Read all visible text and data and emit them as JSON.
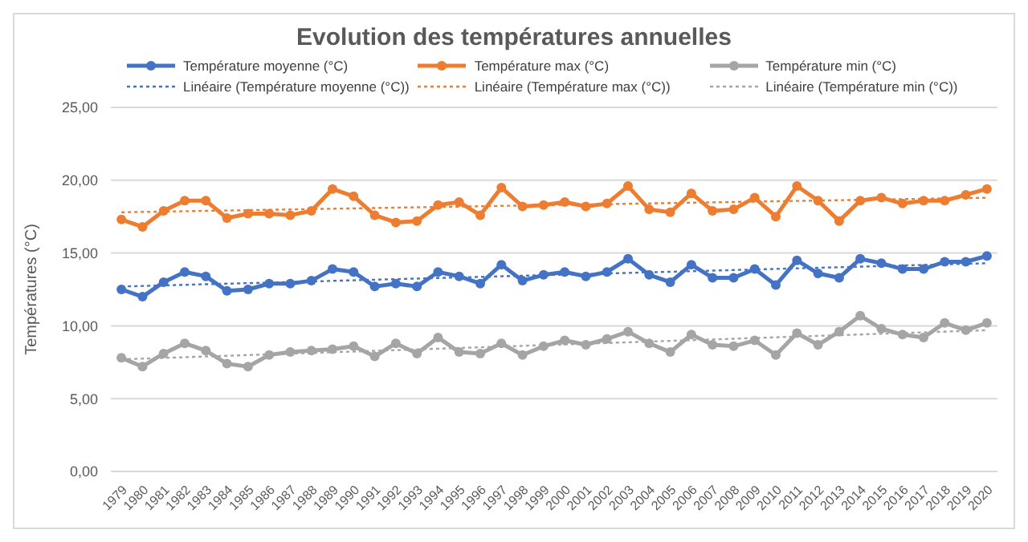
{
  "chart_data": {
    "type": "line",
    "title": "Evolution des températures annuelles",
    "ylabel": "Températures (°C)",
    "x": [
      1979,
      1980,
      1981,
      1982,
      1983,
      1984,
      1985,
      1986,
      1987,
      1988,
      1989,
      1990,
      1991,
      1992,
      1993,
      1994,
      1995,
      1996,
      1997,
      1998,
      1999,
      2000,
      2001,
      2002,
      2003,
      2004,
      2005,
      2006,
      2007,
      2008,
      2009,
      2010,
      2011,
      2012,
      2013,
      2014,
      2015,
      2016,
      2017,
      2018,
      2019,
      2020
    ],
    "xlim": [
      1978.5,
      2020.5
    ],
    "xticks": [
      1979,
      1980,
      1981,
      1982,
      1983,
      1984,
      1985,
      1986,
      1987,
      1988,
      1989,
      1990,
      1991,
      1992,
      1993,
      1994,
      1995,
      1996,
      1997,
      1998,
      1999,
      2000,
      2001,
      2002,
      2003,
      2004,
      2005,
      2006,
      2007,
      2008,
      2009,
      2010,
      2011,
      2012,
      2013,
      2014,
      2015,
      2016,
      2017,
      2018,
      2019,
      2020
    ],
    "ylim": [
      0,
      25
    ],
    "yticks": [
      {
        "value": 0,
        "label": "0,00"
      },
      {
        "value": 5,
        "label": "5,00"
      },
      {
        "value": 10,
        "label": "10,00"
      },
      {
        "value": 15,
        "label": "15,00"
      },
      {
        "value": 20,
        "label": "20,00"
      },
      {
        "value": 25,
        "label": "25,00"
      }
    ],
    "grid": "y",
    "legend": "top",
    "marker": "circle",
    "line_style": "solid",
    "series": [
      {
        "name": "Température moyenne (°C)",
        "color": "#4472c4",
        "values": [
          12.5,
          12.0,
          13.0,
          13.7,
          13.4,
          12.4,
          12.5,
          12.9,
          12.9,
          13.1,
          13.9,
          13.7,
          12.7,
          12.9,
          12.7,
          13.7,
          13.4,
          12.9,
          14.2,
          13.1,
          13.5,
          13.7,
          13.4,
          13.7,
          14.6,
          13.5,
          13.0,
          14.2,
          13.3,
          13.3,
          13.9,
          12.8,
          14.5,
          13.6,
          13.3,
          14.6,
          14.3,
          13.9,
          13.9,
          14.4,
          14.4,
          14.8
        ]
      },
      {
        "name": "Température max (°C)",
        "color": "#ed7d31",
        "values": [
          17.3,
          16.8,
          17.9,
          18.6,
          18.6,
          17.4,
          17.7,
          17.7,
          17.6,
          17.9,
          19.4,
          18.9,
          17.6,
          17.1,
          17.2,
          18.3,
          18.5,
          17.6,
          19.5,
          18.2,
          18.3,
          18.5,
          18.2,
          18.4,
          19.6,
          18.0,
          17.8,
          19.1,
          17.9,
          18.0,
          18.8,
          17.5,
          19.6,
          18.6,
          17.2,
          18.6,
          18.8,
          18.4,
          18.6,
          18.6,
          19.0,
          19.4
        ]
      },
      {
        "name": "Température min (°C)",
        "color": "#a5a5a5",
        "values": [
          7.8,
          7.2,
          8.1,
          8.8,
          8.3,
          7.4,
          7.2,
          8.0,
          8.2,
          8.3,
          8.4,
          8.6,
          7.9,
          8.8,
          8.1,
          9.2,
          8.2,
          8.1,
          8.8,
          8.0,
          8.6,
          9.0,
          8.7,
          9.1,
          9.6,
          8.8,
          8.2,
          9.4,
          8.7,
          8.6,
          9.0,
          8.0,
          9.5,
          8.7,
          9.6,
          10.7,
          9.8,
          9.4,
          9.2,
          10.2,
          9.7,
          10.2
        ]
      },
      {
        "name": "Linéaire (Température moyenne (°C))",
        "color": "#4472c4",
        "marker": "none",
        "line_style": "dotted",
        "values": [
          12.7,
          null,
          null,
          null,
          null,
          null,
          null,
          null,
          null,
          null,
          null,
          null,
          null,
          null,
          null,
          null,
          null,
          null,
          null,
          null,
          null,
          null,
          null,
          null,
          null,
          null,
          null,
          null,
          null,
          null,
          null,
          null,
          null,
          null,
          null,
          null,
          null,
          null,
          null,
          null,
          null,
          14.3
        ]
      },
      {
        "name": "Linéaire (Température max (°C))",
        "color": "#ed7d31",
        "marker": "none",
        "line_style": "dotted",
        "values": [
          17.8,
          null,
          null,
          null,
          null,
          null,
          null,
          null,
          null,
          null,
          null,
          null,
          null,
          null,
          null,
          null,
          null,
          null,
          null,
          null,
          null,
          null,
          null,
          null,
          null,
          null,
          null,
          null,
          null,
          null,
          null,
          null,
          null,
          null,
          null,
          null,
          null,
          null,
          null,
          null,
          null,
          18.8
        ]
      },
      {
        "name": "Linéaire (Température min (°C))",
        "color": "#a5a5a5",
        "marker": "none",
        "line_style": "dotted",
        "values": [
          7.7,
          null,
          null,
          null,
          null,
          null,
          null,
          null,
          null,
          null,
          null,
          null,
          null,
          null,
          null,
          null,
          null,
          null,
          null,
          null,
          null,
          null,
          null,
          null,
          null,
          null,
          null,
          null,
          null,
          null,
          null,
          null,
          null,
          null,
          null,
          null,
          null,
          null,
          null,
          null,
          null,
          9.7
        ]
      }
    ]
  }
}
